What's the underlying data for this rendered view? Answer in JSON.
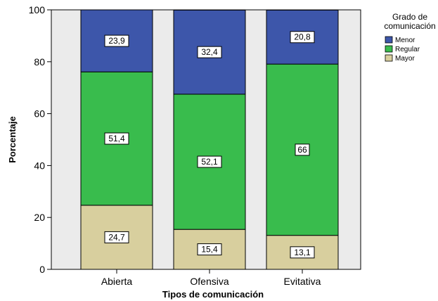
{
  "chart_data": {
    "type": "bar",
    "stacked": true,
    "categories": [
      "Abierta",
      "Ofensiva",
      "Evitativa"
    ],
    "series": [
      {
        "name": "Mayor",
        "values": [
          24.7,
          15.4,
          13.1
        ],
        "labels": [
          "24,7",
          "15,4",
          "13,1"
        ],
        "color": "#D8CF9E"
      },
      {
        "name": "Regular",
        "values": [
          51.4,
          52.1,
          66.0
        ],
        "labels": [
          "51,4",
          "52,1",
          "66"
        ],
        "color": "#39BC4D"
      },
      {
        "name": "Menor",
        "values": [
          23.9,
          32.4,
          20.8
        ],
        "labels": [
          "23,9",
          "32,4",
          "20,8"
        ],
        "color": "#3D56AA"
      }
    ],
    "xlabel": "Tipos de comunicación",
    "ylabel": "Porcentaje",
    "ylim": [
      0,
      100
    ],
    "yticks": [
      0,
      20,
      40,
      60,
      80,
      100
    ],
    "grid": false,
    "plot_background": "#EBEBEB",
    "legend": {
      "title": "Grado de comunicación",
      "title_lines": [
        "Grado de",
        "comunicación"
      ],
      "order": [
        "Menor",
        "Regular",
        "Mayor"
      ],
      "placement": "right-top"
    }
  }
}
